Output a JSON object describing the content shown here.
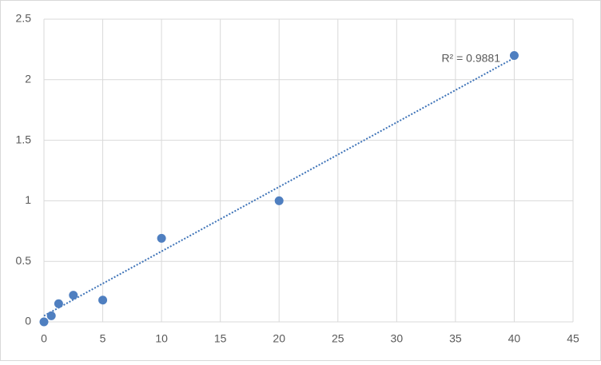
{
  "chart_data": {
    "type": "scatter",
    "x": [
      0,
      0.625,
      1.25,
      2.5,
      5,
      10,
      20,
      40
    ],
    "values": [
      0,
      0.05,
      0.15,
      0.22,
      0.18,
      0.69,
      1.0,
      2.2
    ],
    "color": "#4f7fc0",
    "trendline": {
      "x": [
        0,
        40
      ],
      "values": [
        0.05,
        2.18
      ],
      "color": "#3f74b8"
    },
    "annotation": "R² = 0.9881",
    "xlim": [
      0,
      45
    ],
    "xticks": [
      0,
      5,
      10,
      15,
      20,
      25,
      30,
      35,
      40,
      45
    ],
    "ylim": [
      0,
      2.5
    ],
    "yticks": [
      0,
      0.5,
      1,
      1.5,
      2,
      2.5
    ],
    "grid": true
  }
}
